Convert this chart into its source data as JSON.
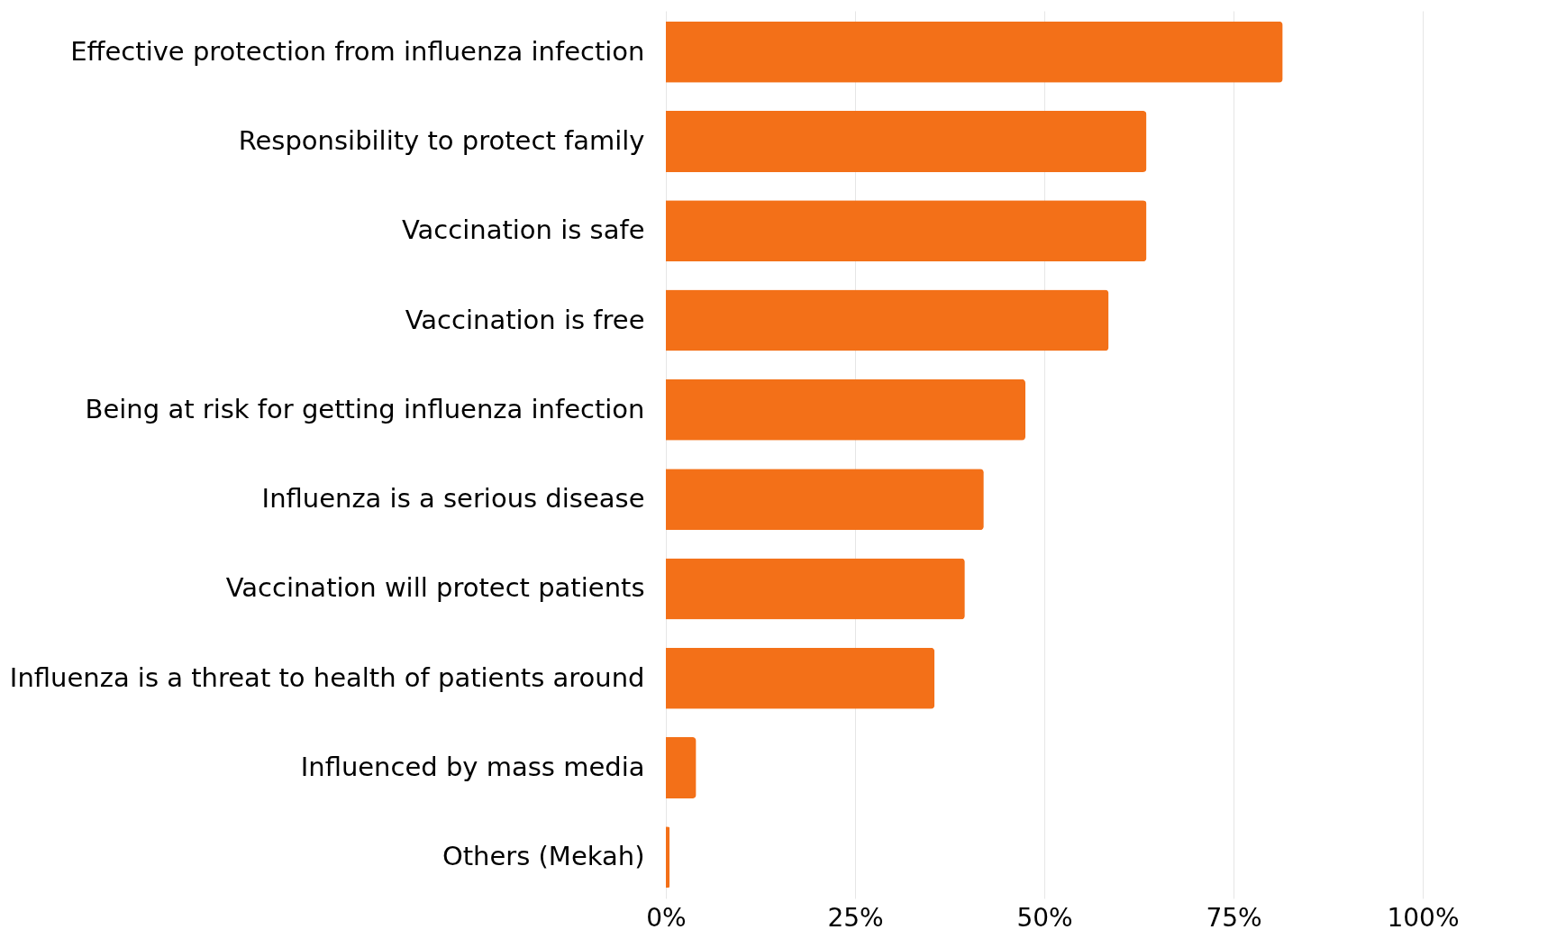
{
  "chart_data": {
    "type": "bar",
    "orientation": "horizontal",
    "categories": [
      "Effective protection from influenza infection",
      "Responsibility to protect family",
      "Vaccination is safe",
      "Vaccination is free",
      "Being at risk for getting influenza infection",
      "Influenza is a serious disease",
      "Vaccination will protect patients",
      "Influenza is a threat to health of patients around",
      "Influenced by mass media",
      "Others (Mekah)"
    ],
    "values": [
      81.5,
      63.5,
      63.5,
      58.5,
      47.5,
      42,
      39.5,
      35.5,
      4,
      0.5
    ],
    "color": "#f37018",
    "xlim": [
      0,
      100
    ],
    "xticks": [
      {
        "value": 0,
        "label": "0%"
      },
      {
        "value": 25,
        "label": "25%"
      },
      {
        "value": 50,
        "label": "50%"
      },
      {
        "value": 75,
        "label": "75%"
      },
      {
        "value": 100,
        "label": "100%"
      }
    ],
    "grid": "x"
  }
}
